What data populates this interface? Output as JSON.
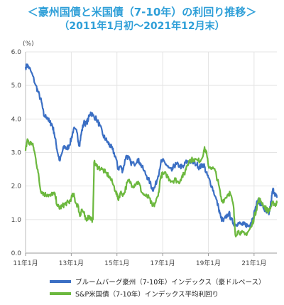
{
  "chart_data": {
    "type": "line",
    "title": "＜豪州国債と米国債（7-10年）の利回り推移＞",
    "subtitle": "（2011年1月初～2021年12月末）",
    "ylabel": "(%)",
    "ylim": [
      0,
      6
    ],
    "yticks": [
      "0.0",
      "1.0",
      "2.0",
      "3.0",
      "4.0",
      "5.0",
      "6.0"
    ],
    "xticks": [
      {
        "label": "11年1月",
        "t": 2011.0
      },
      {
        "label": "13年1月",
        "t": 2013.0
      },
      {
        "label": "15年1月",
        "t": 2015.0
      },
      {
        "label": "17年1月",
        "t": 2017.0
      },
      {
        "label": "19年1月",
        "t": 2019.0
      },
      {
        "label": "21年1月",
        "t": 2021.0
      }
    ],
    "xlim": [
      2011.0,
      2022.0
    ],
    "grid": true,
    "legend_position": "bottom",
    "series": [
      {
        "name": "ブルームバーグ豪州（7-10年）インデックス（豪ドルベース）",
        "color": "#3b6fc4",
        "points": [
          [
            2011.0,
            5.55
          ],
          [
            2011.1,
            5.6
          ],
          [
            2011.25,
            5.4
          ],
          [
            2011.45,
            5.0
          ],
          [
            2011.55,
            4.8
          ],
          [
            2011.7,
            4.5
          ],
          [
            2011.8,
            4.1
          ],
          [
            2011.95,
            4.05
          ],
          [
            2012.05,
            3.9
          ],
          [
            2012.15,
            3.85
          ],
          [
            2012.25,
            3.6
          ],
          [
            2012.35,
            3.2
          ],
          [
            2012.42,
            2.95
          ],
          [
            2012.5,
            2.75
          ],
          [
            2012.6,
            3.0
          ],
          [
            2012.7,
            3.2
          ],
          [
            2012.8,
            3.1
          ],
          [
            2012.9,
            3.2
          ],
          [
            2013.0,
            3.4
          ],
          [
            2013.1,
            3.7
          ],
          [
            2013.25,
            3.6
          ],
          [
            2013.35,
            3.2
          ],
          [
            2013.45,
            3.6
          ],
          [
            2013.55,
            3.9
          ],
          [
            2013.65,
            3.85
          ],
          [
            2013.75,
            4.0
          ],
          [
            2013.85,
            4.2
          ],
          [
            2013.95,
            4.1
          ],
          [
            2014.1,
            4.0
          ],
          [
            2014.25,
            3.8
          ],
          [
            2014.4,
            3.5
          ],
          [
            2014.5,
            3.4
          ],
          [
            2014.6,
            3.3
          ],
          [
            2014.7,
            3.2
          ],
          [
            2014.8,
            3.1
          ],
          [
            2014.95,
            2.85
          ],
          [
            2015.05,
            2.5
          ],
          [
            2015.15,
            2.6
          ],
          [
            2015.25,
            2.45
          ],
          [
            2015.4,
            2.9
          ],
          [
            2015.5,
            2.85
          ],
          [
            2015.6,
            2.7
          ],
          [
            2015.75,
            2.65
          ],
          [
            2015.9,
            2.8
          ],
          [
            2016.0,
            2.7
          ],
          [
            2016.15,
            2.5
          ],
          [
            2016.3,
            2.3
          ],
          [
            2016.45,
            2.1
          ],
          [
            2016.55,
            1.9
          ],
          [
            2016.65,
            1.95
          ],
          [
            2016.8,
            2.3
          ],
          [
            2016.92,
            2.7
          ],
          [
            2017.0,
            2.75
          ],
          [
            2017.15,
            2.65
          ],
          [
            2017.25,
            2.55
          ],
          [
            2017.4,
            2.45
          ],
          [
            2017.5,
            2.6
          ],
          [
            2017.6,
            2.65
          ],
          [
            2017.75,
            2.6
          ],
          [
            2017.9,
            2.55
          ],
          [
            2018.0,
            2.7
          ],
          [
            2018.15,
            2.75
          ],
          [
            2018.3,
            2.7
          ],
          [
            2018.5,
            2.65
          ],
          [
            2018.6,
            2.55
          ],
          [
            2018.7,
            2.6
          ],
          [
            2018.8,
            2.65
          ],
          [
            2018.9,
            2.4
          ],
          [
            2019.0,
            2.25
          ],
          [
            2019.15,
            2.0
          ],
          [
            2019.3,
            1.7
          ],
          [
            2019.45,
            1.35
          ],
          [
            2019.55,
            1.05
          ],
          [
            2019.65,
            0.95
          ],
          [
            2019.75,
            1.05
          ],
          [
            2019.9,
            1.2
          ],
          [
            2020.0,
            1.0
          ],
          [
            2020.1,
            0.9
          ],
          [
            2020.2,
            0.85
          ],
          [
            2020.3,
            0.9
          ],
          [
            2020.45,
            0.85
          ],
          [
            2020.55,
            0.85
          ],
          [
            2020.65,
            0.85
          ],
          [
            2020.75,
            0.8
          ],
          [
            2020.85,
            0.9
          ],
          [
            2020.95,
            1.05
          ],
          [
            2021.05,
            1.3
          ],
          [
            2021.15,
            1.55
          ],
          [
            2021.25,
            1.5
          ],
          [
            2021.35,
            1.45
          ],
          [
            2021.45,
            1.3
          ],
          [
            2021.55,
            1.2
          ],
          [
            2021.65,
            1.15
          ],
          [
            2021.75,
            1.55
          ],
          [
            2021.82,
            1.9
          ],
          [
            2021.9,
            1.8
          ],
          [
            2022.0,
            1.65
          ]
        ]
      },
      {
        "name": "S&P米国債（7-10年）インデックス平均利回り",
        "color": "#6cb83e",
        "points": [
          [
            2011.0,
            3.05
          ],
          [
            2011.08,
            3.4
          ],
          [
            2011.15,
            3.25
          ],
          [
            2011.25,
            3.3
          ],
          [
            2011.35,
            3.15
          ],
          [
            2011.45,
            2.8
          ],
          [
            2011.55,
            2.4
          ],
          [
            2011.65,
            1.9
          ],
          [
            2011.75,
            1.8
          ],
          [
            2011.85,
            1.75
          ],
          [
            2011.95,
            1.75
          ],
          [
            2012.1,
            1.7
          ],
          [
            2012.2,
            1.8
          ],
          [
            2012.3,
            1.7
          ],
          [
            2012.4,
            1.4
          ],
          [
            2012.5,
            1.35
          ],
          [
            2012.6,
            1.4
          ],
          [
            2012.7,
            1.45
          ],
          [
            2012.8,
            1.5
          ],
          [
            2012.9,
            1.5
          ],
          [
            2013.0,
            1.65
          ],
          [
            2013.1,
            1.75
          ],
          [
            2013.2,
            1.5
          ],
          [
            2013.3,
            1.4
          ],
          [
            2013.38,
            1.1
          ],
          [
            2013.45,
            1.3
          ],
          [
            2013.55,
            1.2
          ],
          [
            2013.62,
            1.0
          ],
          [
            2013.7,
            1.05
          ],
          [
            2013.8,
            1.1
          ],
          [
            2013.88,
            1.0
          ],
          [
            2013.95,
            1.0
          ],
          [
            2014.0,
            2.7
          ],
          [
            2014.1,
            2.6
          ],
          [
            2014.2,
            2.55
          ],
          [
            2014.35,
            2.5
          ],
          [
            2014.5,
            2.4
          ],
          [
            2014.65,
            2.3
          ],
          [
            2014.8,
            2.1
          ],
          [
            2014.95,
            1.85
          ],
          [
            2015.05,
            1.6
          ],
          [
            2015.15,
            1.8
          ],
          [
            2015.3,
            1.75
          ],
          [
            2015.45,
            2.1
          ],
          [
            2015.55,
            2.15
          ],
          [
            2015.7,
            2.0
          ],
          [
            2015.85,
            2.1
          ],
          [
            2015.95,
            2.1
          ],
          [
            2016.1,
            1.8
          ],
          [
            2016.25,
            1.7
          ],
          [
            2016.4,
            1.65
          ],
          [
            2016.55,
            1.4
          ],
          [
            2016.65,
            1.45
          ],
          [
            2016.8,
            1.7
          ],
          [
            2016.92,
            2.3
          ],
          [
            2017.0,
            2.35
          ],
          [
            2017.15,
            2.35
          ],
          [
            2017.3,
            2.2
          ],
          [
            2017.45,
            2.15
          ],
          [
            2017.55,
            2.2
          ],
          [
            2017.7,
            2.1
          ],
          [
            2017.85,
            2.3
          ],
          [
            2017.95,
            2.35
          ],
          [
            2018.05,
            2.6
          ],
          [
            2018.15,
            2.75
          ],
          [
            2018.35,
            2.8
          ],
          [
            2018.55,
            2.75
          ],
          [
            2018.7,
            2.8
          ],
          [
            2018.82,
            3.1
          ],
          [
            2018.9,
            3.05
          ],
          [
            2019.0,
            2.6
          ],
          [
            2019.15,
            2.55
          ],
          [
            2019.3,
            2.45
          ],
          [
            2019.45,
            2.05
          ],
          [
            2019.58,
            1.55
          ],
          [
            2019.7,
            1.6
          ],
          [
            2019.85,
            1.75
          ],
          [
            2019.95,
            1.8
          ],
          [
            2020.1,
            1.4
          ],
          [
            2020.18,
            0.55
          ],
          [
            2020.3,
            0.65
          ],
          [
            2020.45,
            0.6
          ],
          [
            2020.6,
            0.55
          ],
          [
            2020.75,
            0.65
          ],
          [
            2020.9,
            0.8
          ],
          [
            2021.0,
            1.05
          ],
          [
            2021.1,
            1.3
          ],
          [
            2021.2,
            1.6
          ],
          [
            2021.3,
            1.55
          ],
          [
            2021.45,
            1.4
          ],
          [
            2021.55,
            1.3
          ],
          [
            2021.65,
            1.25
          ],
          [
            2021.75,
            1.4
          ],
          [
            2021.85,
            1.5
          ],
          [
            2021.95,
            1.45
          ],
          [
            2022.0,
            1.5
          ]
        ]
      }
    ]
  }
}
